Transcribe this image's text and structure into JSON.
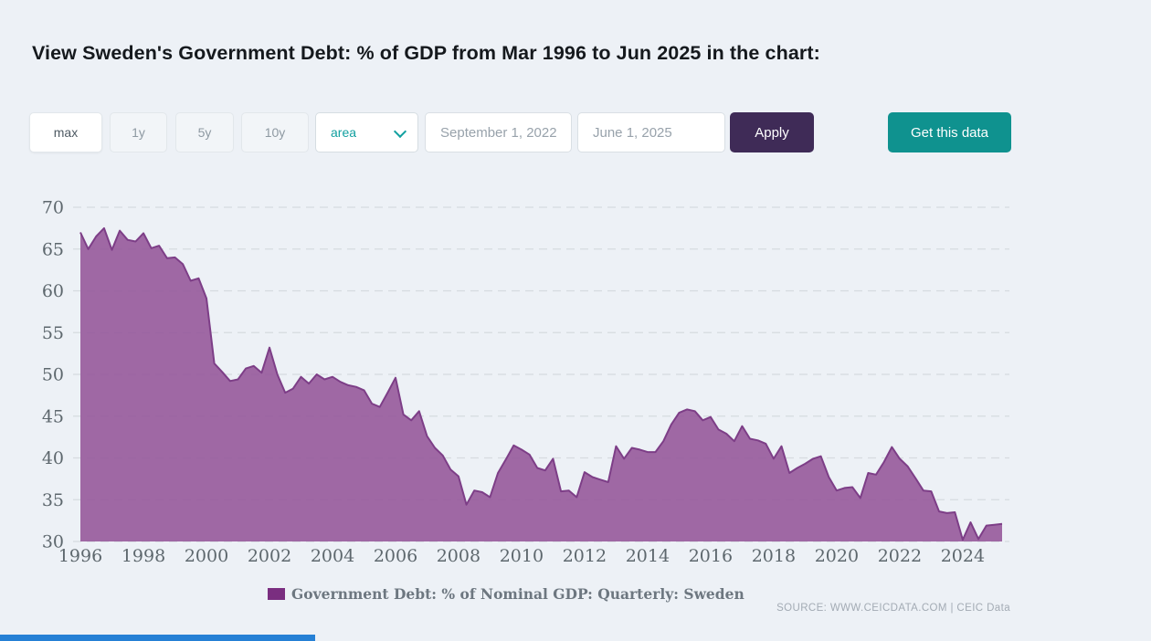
{
  "page": {
    "title": "View Sweden's Government Debt: % of GDP from Mar 1996 to Jun 2025 in the chart:",
    "background_color": "#edf1f6"
  },
  "toolbar": {
    "range_buttons": [
      {
        "label": "max",
        "active": true
      },
      {
        "label": "1y",
        "active": false
      },
      {
        "label": "5y",
        "active": false
      },
      {
        "label": "10y",
        "active": false
      }
    ],
    "chart_type_select": {
      "value": "area",
      "accent_color": "#12a0a0"
    },
    "date_from": {
      "value": "September 1, 2022"
    },
    "date_to": {
      "value": "June 1, 2025"
    },
    "apply_label": "Apply",
    "get_data_label": "Get this data"
  },
  "chart_data": {
    "type": "area",
    "series": [
      {
        "name": "Government Debt: % of Nominal GDP: Quarterly: Sweden",
        "frequency": "quarterly",
        "x_start": "1996-Q1",
        "x_end": "2025-Q2",
        "values": [
          67.0,
          65.0,
          66.5,
          67.5,
          64.9,
          67.2,
          66.1,
          65.9,
          66.9,
          65.1,
          65.4,
          63.9,
          64.0,
          63.2,
          61.2,
          61.5,
          59.1,
          51.3,
          50.3,
          49.2,
          49.4,
          50.7,
          51.0,
          50.2,
          53.2,
          50.0,
          47.8,
          48.3,
          49.7,
          48.9,
          50.0,
          49.4,
          49.7,
          49.1,
          48.7,
          48.5,
          48.1,
          46.5,
          46.1,
          47.8,
          49.6,
          45.2,
          44.5,
          45.6,
          42.6,
          41.2,
          40.3,
          38.6,
          37.8,
          34.4,
          36.1,
          35.9,
          35.3,
          38.2,
          39.8,
          41.5,
          41.0,
          40.4,
          38.8,
          38.5,
          39.9,
          36.0,
          36.1,
          35.3,
          38.3,
          37.7,
          37.4,
          37.1,
          41.4,
          39.9,
          41.2,
          41.0,
          40.7,
          40.7,
          42.0,
          44.0,
          45.4,
          45.8,
          45.6,
          44.5,
          44.9,
          43.4,
          42.9,
          42.0,
          43.8,
          42.3,
          42.1,
          41.7,
          39.9,
          41.4,
          38.2,
          38.8,
          39.3,
          39.9,
          40.2,
          37.7,
          36.1,
          36.4,
          36.5,
          35.2,
          38.2,
          38.0,
          39.5,
          41.3,
          39.9,
          39.0,
          37.6,
          36.1,
          36.0,
          33.6,
          33.4,
          33.5,
          30.2,
          32.3,
          30.3,
          31.9,
          32.0,
          32.1
        ]
      }
    ],
    "x_tick_labels": [
      "1996",
      "1998",
      "2000",
      "2002",
      "2004",
      "2006",
      "2008",
      "2010",
      "2012",
      "2014",
      "2016",
      "2018",
      "2020",
      "2022",
      "2024"
    ],
    "y_ticks": [
      70,
      65,
      60,
      55,
      50,
      45,
      40,
      35,
      30
    ],
    "ylim": [
      30,
      70
    ],
    "grid": "horizontal-dashed",
    "legend_position": "bottom",
    "colors": {
      "fill": "#96599b",
      "stroke": "#7d3e87",
      "legend_swatch": "#7a2e80",
      "grid": "#d6dbe0"
    }
  },
  "legend": {
    "label": "Government Debt: % of Nominal GDP: Quarterly: Sweden"
  },
  "source": {
    "text": "SOURCE: WWW.CEICDATA.COM | CEIC Data"
  }
}
